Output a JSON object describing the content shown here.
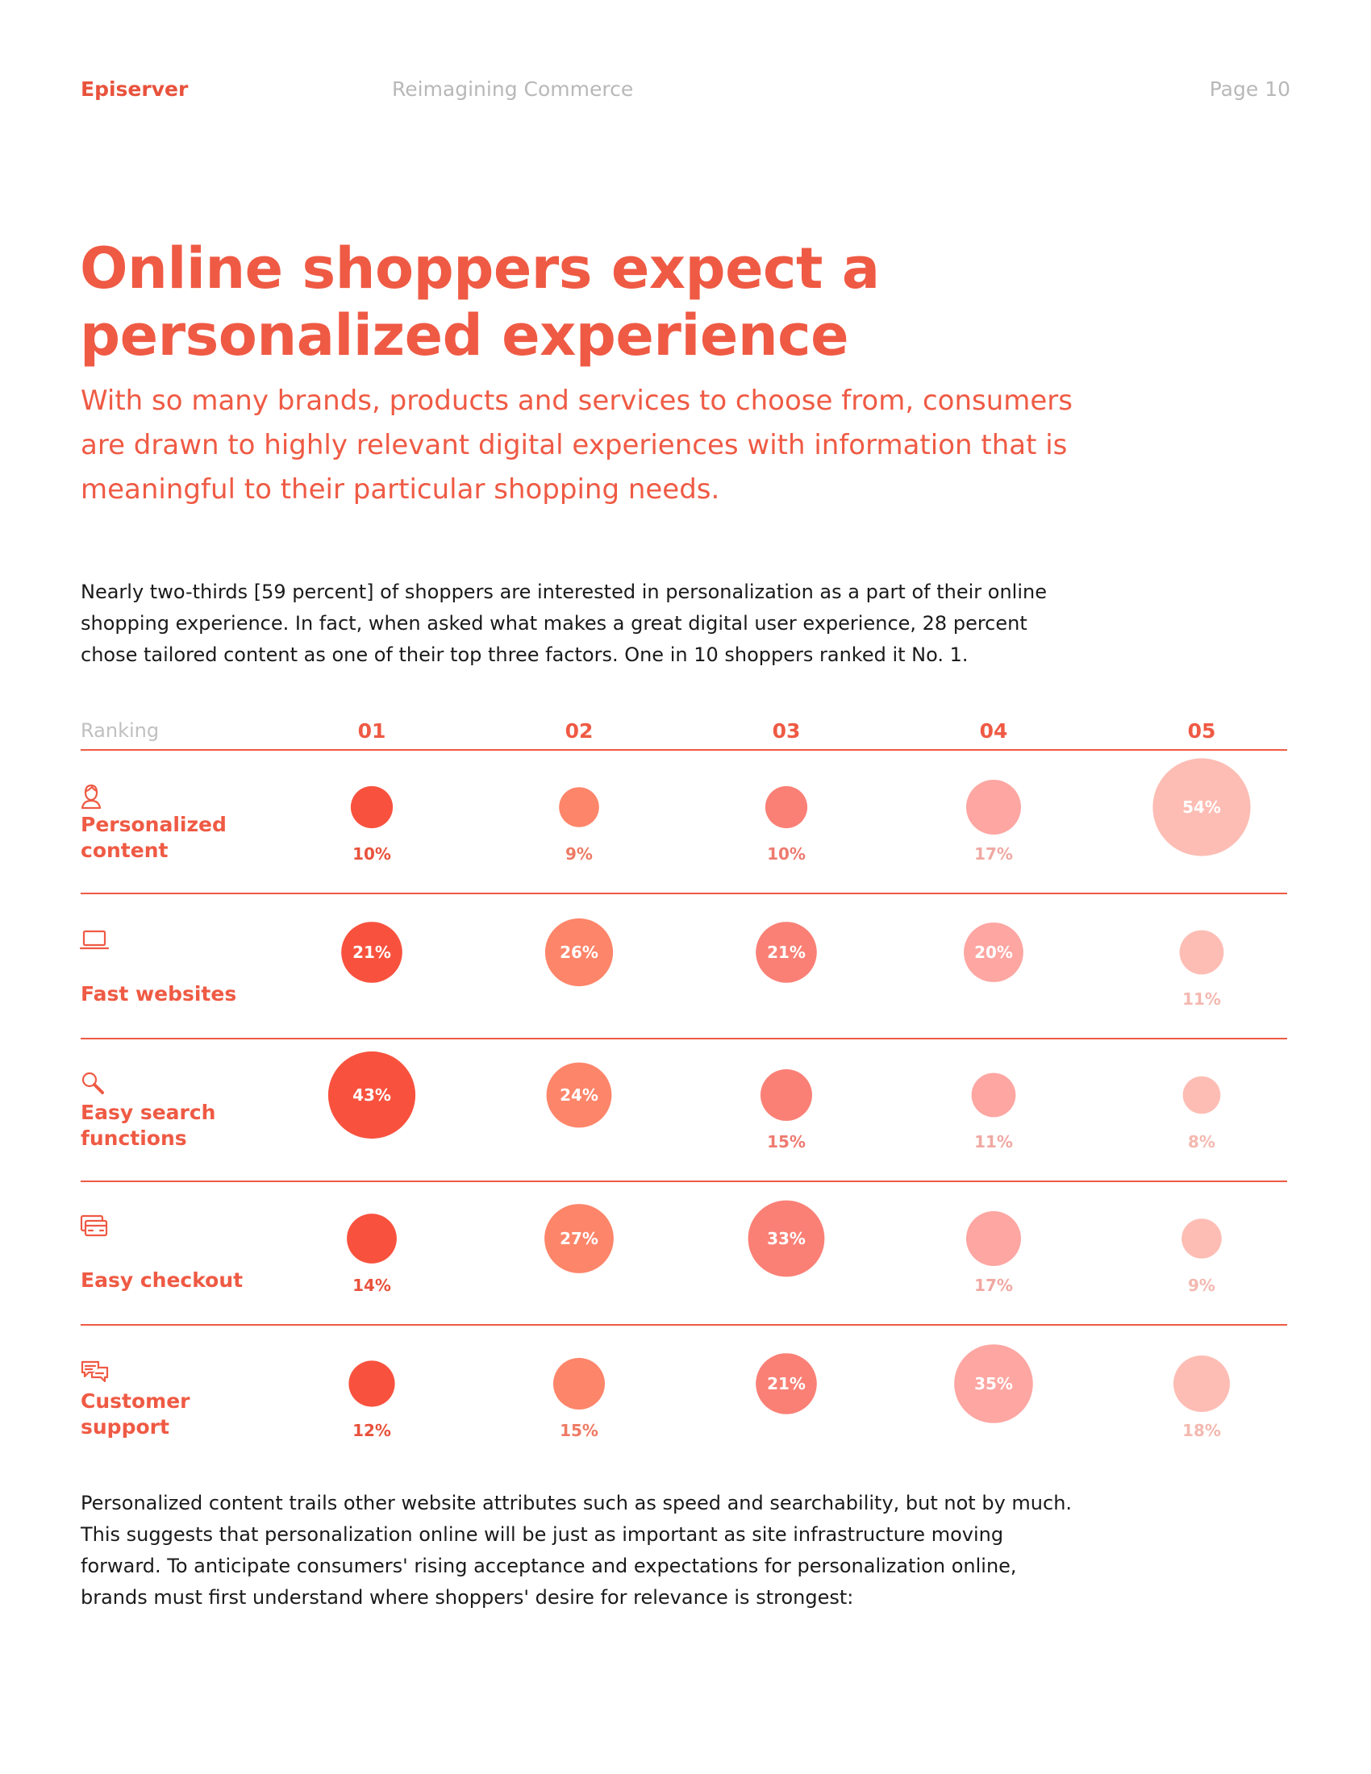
{
  "header": {
    "brand": "Episerver",
    "doc_title": "Reimagining Commerce",
    "page": "Page 10"
  },
  "title_line1": "Online shoppers expect a",
  "title_line2": "personalized experience",
  "subtitle": "With so many brands, products and services to choose from, consumers are drawn to highly relevant digital experiences with information that is meaningful to their particular shopping needs.",
  "paragraph1": "Nearly two-thirds [59 percent] of shoppers are interested in personalization as a part of their online shopping experience. In fact, when asked what makes a great digital user experience, 28 percent chose tailored content as one of their top three factors. One in 10 shoppers ranked it No. 1.",
  "paragraph2": "Personalized content trails other website attributes such as speed and searchability, but not by much. This suggests that personalization online will be just as important as site infrastructure moving forward. To anticipate consumers' rising acceptance and expectations for personalization online, brands must first understand where shoppers' desire for relevance is strongest:",
  "colors": {
    "accent": "#ef5a44",
    "rank_colors": [
      "#f8523e",
      "#fd856a",
      "#fa8076",
      "#fda6a2",
      "#fdbdb4"
    ],
    "rank_label_colors": [
      "#e8523c",
      "#ee7a64",
      "#ee7a70",
      "#f0a8a2",
      "#f4b8b0"
    ]
  },
  "chart_data": {
    "type": "bubble-matrix",
    "row_header": "Ranking",
    "columns": [
      "01",
      "02",
      "03",
      "04",
      "05"
    ],
    "rows": [
      {
        "label": [
          "Personalized",
          "content"
        ],
        "icon": "person-icon",
        "values": [
          10,
          9,
          10,
          17,
          54
        ]
      },
      {
        "label": [
          "Fast websites"
        ],
        "icon": "laptop-icon",
        "values": [
          21,
          26,
          21,
          20,
          11
        ]
      },
      {
        "label": [
          "Easy search",
          "functions"
        ],
        "icon": "search-icon",
        "values": [
          43,
          24,
          15,
          11,
          8
        ]
      },
      {
        "label": [
          "Easy checkout"
        ],
        "icon": "credit-card-icon",
        "values": [
          14,
          27,
          33,
          17,
          9
        ]
      },
      {
        "label": [
          "Customer",
          "support"
        ],
        "icon": "chat-icon",
        "values": [
          12,
          15,
          21,
          35,
          18
        ]
      }
    ],
    "value_suffix": "%"
  }
}
